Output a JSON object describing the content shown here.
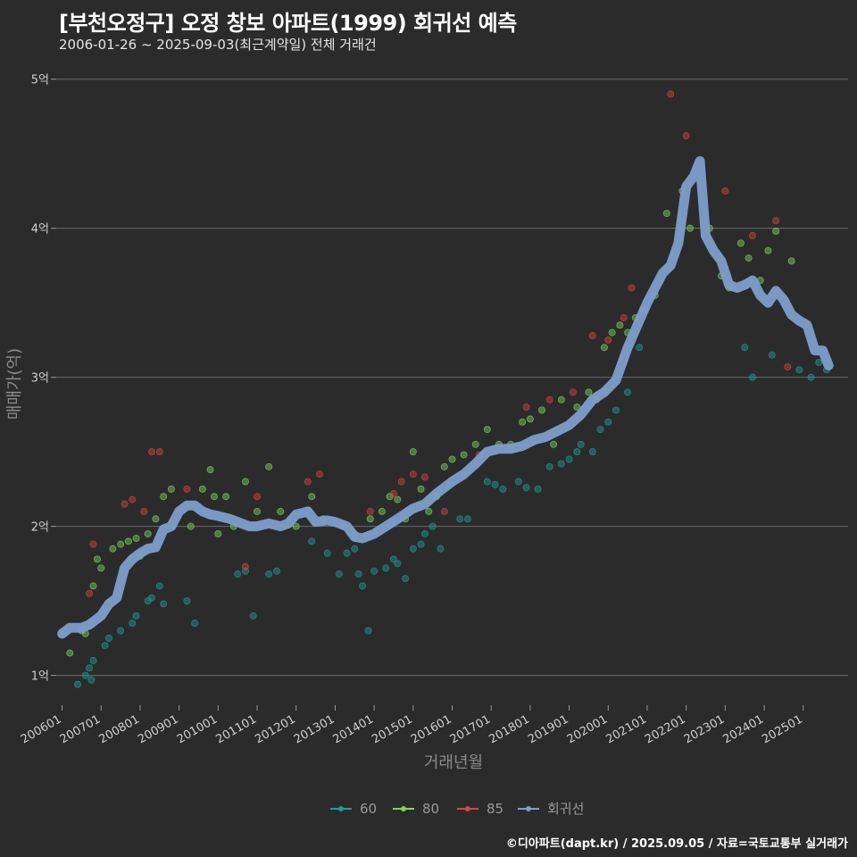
{
  "header": {
    "title": "[부천오정구] 오정 창보 아파트(1999) 회귀선 예측",
    "subtitle": "2006-01-26 ~ 2025-09-03(최근계약일) 전체 거래건"
  },
  "footer": {
    "source": "©디아파트(dapt.kr) / 2025.09.05 / 자료=국토교통부 실거래가"
  },
  "chart_data": {
    "type": "scatter",
    "title": "[부천오정구] 오정 창보 아파트(1999) 회귀선 예측",
    "xlabel": "거래년월",
    "ylabel": "매매가(억)",
    "xlim": [
      2005.85,
      2026.15
    ],
    "ylim": [
      0.8,
      5.1
    ],
    "yticks": [
      1,
      2,
      3,
      4,
      5
    ],
    "ytick_labels": [
      "1억",
      "2억",
      "3억",
      "4억",
      "5억"
    ],
    "xticks": [
      2006,
      2007,
      2008,
      2009,
      2010,
      2011,
      2012,
      2013,
      2014,
      2015,
      2016,
      2017,
      2018,
      2019,
      2020,
      2021,
      2022,
      2023,
      2024,
      2025
    ],
    "xtick_labels": [
      "200601",
      "200701",
      "200801",
      "200901",
      "201001",
      "201101",
      "201201",
      "201301",
      "201401",
      "201501",
      "201601",
      "201701",
      "201801",
      "201901",
      "202001",
      "202101",
      "202201",
      "202301",
      "202401",
      "202501"
    ],
    "grid": true,
    "legend_position": "bottom",
    "colors": {
      "60": "#1f9e94",
      "80": "#7fd45c",
      "85": "#d8453f",
      "regression": "#7d9ecb"
    },
    "series": [
      {
        "name": "60",
        "color": "#1f9e94",
        "points": [
          [
            2006.4,
            0.94
          ],
          [
            2006.6,
            1.0
          ],
          [
            2006.7,
            1.05
          ],
          [
            2006.75,
            0.97
          ],
          [
            2006.8,
            1.1
          ],
          [
            2007.1,
            1.2
          ],
          [
            2007.2,
            1.25
          ],
          [
            2007.5,
            1.3
          ],
          [
            2007.8,
            1.35
          ],
          [
            2007.9,
            1.4
          ],
          [
            2008.2,
            1.5
          ],
          [
            2008.3,
            1.52
          ],
          [
            2008.5,
            1.6
          ],
          [
            2008.6,
            1.48
          ],
          [
            2009.2,
            1.5
          ],
          [
            2009.4,
            1.35
          ],
          [
            2010.5,
            1.68
          ],
          [
            2010.7,
            1.7
          ],
          [
            2010.9,
            1.4
          ],
          [
            2011.3,
            1.68
          ],
          [
            2011.5,
            1.7
          ],
          [
            2012.4,
            1.9
          ],
          [
            2012.8,
            1.82
          ],
          [
            2013.1,
            1.68
          ],
          [
            2013.3,
            1.82
          ],
          [
            2013.5,
            1.85
          ],
          [
            2013.6,
            1.68
          ],
          [
            2013.7,
            1.6
          ],
          [
            2013.85,
            1.3
          ],
          [
            2014.0,
            1.7
          ],
          [
            2014.3,
            1.72
          ],
          [
            2014.5,
            1.78
          ],
          [
            2014.6,
            1.75
          ],
          [
            2014.8,
            1.65
          ],
          [
            2015.0,
            1.85
          ],
          [
            2015.2,
            1.88
          ],
          [
            2015.3,
            1.95
          ],
          [
            2015.5,
            2.0
          ],
          [
            2015.7,
            1.85
          ],
          [
            2016.2,
            2.05
          ],
          [
            2016.4,
            2.05
          ],
          [
            2016.9,
            2.3
          ],
          [
            2017.1,
            2.28
          ],
          [
            2017.3,
            2.25
          ],
          [
            2017.7,
            2.3
          ],
          [
            2017.9,
            2.26
          ],
          [
            2018.2,
            2.25
          ],
          [
            2018.5,
            2.4
          ],
          [
            2018.8,
            2.42
          ],
          [
            2019.0,
            2.45
          ],
          [
            2019.2,
            2.5
          ],
          [
            2019.3,
            2.55
          ],
          [
            2019.6,
            2.5
          ],
          [
            2019.8,
            2.65
          ],
          [
            2020.0,
            2.7
          ],
          [
            2020.2,
            2.78
          ],
          [
            2020.5,
            2.9
          ],
          [
            2020.8,
            3.2
          ],
          [
            2023.5,
            3.2
          ],
          [
            2023.7,
            3.0
          ],
          [
            2024.2,
            3.15
          ],
          [
            2024.9,
            3.05
          ],
          [
            2025.2,
            3.0
          ],
          [
            2025.4,
            3.1
          ],
          [
            2025.6,
            3.05
          ]
        ]
      },
      {
        "name": "80",
        "color": "#7fd45c",
        "points": [
          [
            2006.2,
            1.15
          ],
          [
            2006.5,
            1.3
          ],
          [
            2006.6,
            1.28
          ],
          [
            2006.8,
            1.6
          ],
          [
            2006.9,
            1.78
          ],
          [
            2007.0,
            1.72
          ],
          [
            2007.3,
            1.85
          ],
          [
            2007.5,
            1.88
          ],
          [
            2007.7,
            1.9
          ],
          [
            2007.9,
            1.92
          ],
          [
            2008.0,
            1.8
          ],
          [
            2008.2,
            1.95
          ],
          [
            2008.4,
            2.05
          ],
          [
            2008.6,
            2.2
          ],
          [
            2008.8,
            2.25
          ],
          [
            2009.3,
            2.0
          ],
          [
            2009.6,
            2.25
          ],
          [
            2009.8,
            2.38
          ],
          [
            2009.9,
            2.2
          ],
          [
            2010.0,
            1.95
          ],
          [
            2010.2,
            2.2
          ],
          [
            2010.4,
            2.0
          ],
          [
            2010.7,
            2.3
          ],
          [
            2011.0,
            2.1
          ],
          [
            2011.3,
            2.4
          ],
          [
            2011.6,
            2.1
          ],
          [
            2012.0,
            2.0
          ],
          [
            2012.4,
            2.2
          ],
          [
            2012.7,
            2.05
          ],
          [
            2013.2,
            2.0
          ],
          [
            2013.5,
            1.95
          ],
          [
            2013.9,
            2.05
          ],
          [
            2014.2,
            2.1
          ],
          [
            2014.4,
            2.2
          ],
          [
            2014.6,
            2.18
          ],
          [
            2014.8,
            2.05
          ],
          [
            2015.0,
            2.5
          ],
          [
            2015.2,
            2.25
          ],
          [
            2015.4,
            2.1
          ],
          [
            2015.6,
            2.2
          ],
          [
            2015.8,
            2.4
          ],
          [
            2016.0,
            2.45
          ],
          [
            2016.3,
            2.48
          ],
          [
            2016.6,
            2.55
          ],
          [
            2016.9,
            2.65
          ],
          [
            2017.2,
            2.55
          ],
          [
            2017.5,
            2.55
          ],
          [
            2017.8,
            2.7
          ],
          [
            2018.0,
            2.72
          ],
          [
            2018.3,
            2.78
          ],
          [
            2018.6,
            2.55
          ],
          [
            2018.8,
            2.85
          ],
          [
            2019.2,
            2.8
          ],
          [
            2019.5,
            2.9
          ],
          [
            2019.7,
            2.85
          ],
          [
            2019.9,
            3.2
          ],
          [
            2020.1,
            3.3
          ],
          [
            2020.3,
            3.35
          ],
          [
            2020.5,
            3.3
          ],
          [
            2020.7,
            3.4
          ],
          [
            2020.9,
            3.45
          ],
          [
            2021.2,
            3.55
          ],
          [
            2021.5,
            4.1
          ],
          [
            2021.9,
            4.25
          ],
          [
            2022.1,
            4.0
          ],
          [
            2022.6,
            4.0
          ],
          [
            2022.9,
            3.68
          ],
          [
            2023.1,
            3.6
          ],
          [
            2023.4,
            3.9
          ],
          [
            2023.6,
            3.8
          ],
          [
            2023.9,
            3.65
          ],
          [
            2024.1,
            3.85
          ],
          [
            2024.3,
            3.98
          ],
          [
            2024.7,
            3.78
          ]
        ]
      },
      {
        "name": "85",
        "color": "#d8453f",
        "points": [
          [
            2006.7,
            1.55
          ],
          [
            2006.8,
            1.88
          ],
          [
            2007.6,
            2.15
          ],
          [
            2007.8,
            2.18
          ],
          [
            2008.1,
            2.1
          ],
          [
            2008.3,
            2.5
          ],
          [
            2008.5,
            2.5
          ],
          [
            2009.2,
            2.25
          ],
          [
            2010.7,
            1.73
          ],
          [
            2011.0,
            2.2
          ],
          [
            2012.3,
            2.3
          ],
          [
            2012.6,
            2.35
          ],
          [
            2013.9,
            2.1
          ],
          [
            2014.5,
            2.22
          ],
          [
            2014.7,
            2.3
          ],
          [
            2015.0,
            2.35
          ],
          [
            2015.3,
            2.33
          ],
          [
            2015.8,
            2.1
          ],
          [
            2016.7,
            2.48
          ],
          [
            2017.9,
            2.8
          ],
          [
            2018.5,
            2.85
          ],
          [
            2019.1,
            2.9
          ],
          [
            2019.6,
            3.28
          ],
          [
            2020.0,
            3.25
          ],
          [
            2020.4,
            3.4
          ],
          [
            2020.6,
            3.6
          ],
          [
            2021.6,
            4.9
          ],
          [
            2022.0,
            4.62
          ],
          [
            2022.5,
            4.0
          ],
          [
            2023.0,
            4.25
          ],
          [
            2023.7,
            3.95
          ],
          [
            2024.3,
            4.05
          ],
          [
            2024.6,
            3.07
          ]
        ]
      }
    ],
    "regression": {
      "name": "회귀선",
      "x": [
        2006.0,
        2006.2,
        2006.5,
        2006.7,
        2007.0,
        2007.2,
        2007.4,
        2007.6,
        2007.8,
        2008.0,
        2008.2,
        2008.4,
        2008.6,
        2008.8,
        2009.0,
        2009.2,
        2009.4,
        2009.6,
        2009.8,
        2010.0,
        2010.3,
        2010.6,
        2010.8,
        2011.0,
        2011.3,
        2011.6,
        2011.8,
        2012.0,
        2012.3,
        2012.5,
        2012.8,
        2013.0,
        2013.3,
        2013.5,
        2013.7,
        2014.0,
        2014.3,
        2014.6,
        2015.0,
        2015.3,
        2015.6,
        2016.0,
        2016.3,
        2016.6,
        2016.9,
        2017.2,
        2017.5,
        2017.8,
        2018.1,
        2018.4,
        2018.7,
        2019.0,
        2019.3,
        2019.6,
        2019.9,
        2020.2,
        2020.5,
        2020.8,
        2021.0,
        2021.2,
        2021.4,
        2021.6,
        2021.8,
        2022.0,
        2022.2,
        2022.35,
        2022.5,
        2022.7,
        2022.9,
        2023.1,
        2023.3,
        2023.5,
        2023.7,
        2023.9,
        2024.1,
        2024.3,
        2024.5,
        2024.7,
        2024.9,
        2025.1,
        2025.3,
        2025.5,
        2025.65
      ],
      "y": [
        1.28,
        1.32,
        1.32,
        1.34,
        1.4,
        1.48,
        1.52,
        1.72,
        1.78,
        1.82,
        1.85,
        1.86,
        1.98,
        2.0,
        2.1,
        2.14,
        2.14,
        2.1,
        2.08,
        2.07,
        2.05,
        2.02,
        2.0,
        2.0,
        2.02,
        2.0,
        2.02,
        2.08,
        2.1,
        2.03,
        2.04,
        2.03,
        2.0,
        1.93,
        1.92,
        1.95,
        2.0,
        2.05,
        2.12,
        2.15,
        2.22,
        2.3,
        2.35,
        2.42,
        2.5,
        2.52,
        2.52,
        2.54,
        2.58,
        2.6,
        2.64,
        2.68,
        2.75,
        2.85,
        2.9,
        2.98,
        3.2,
        3.38,
        3.5,
        3.6,
        3.7,
        3.75,
        3.9,
        4.28,
        4.35,
        4.45,
        3.95,
        3.85,
        3.78,
        3.62,
        3.6,
        3.62,
        3.65,
        3.55,
        3.5,
        3.58,
        3.52,
        3.42,
        3.38,
        3.35,
        3.18,
        3.18,
        3.08
      ]
    }
  },
  "axes": {
    "ylabel": "매매가(억)",
    "xlabel": "거래년월"
  },
  "legend": {
    "items": [
      {
        "label": "60",
        "color": "#1f9e94"
      },
      {
        "label": "80",
        "color": "#7fd45c"
      },
      {
        "label": "85",
        "color": "#d8453f"
      },
      {
        "label": "회귀선",
        "color": "#7d9ecb"
      }
    ]
  }
}
